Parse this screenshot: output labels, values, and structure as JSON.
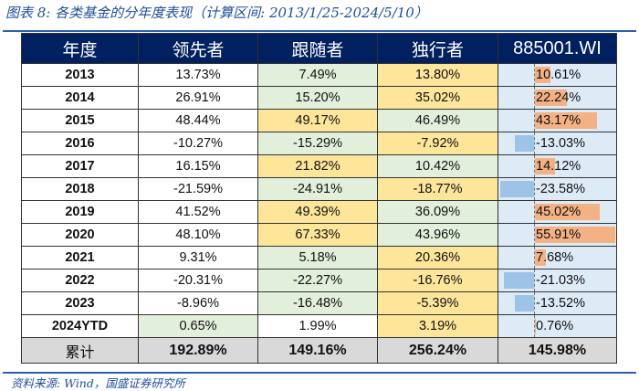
{
  "title": "图表 8:  各类基金的分年度表现（计算区间: 2013/1/25-2024/5/10）",
  "columns": [
    "年度",
    "领先者",
    "跟随者",
    "独行者",
    "885001.WI"
  ],
  "rows": [
    {
      "year": "2013",
      "leader": 13.73,
      "follower": 7.49,
      "independent": 13.8,
      "benchmark": 10.61
    },
    {
      "year": "2014",
      "leader": 26.91,
      "follower": 15.2,
      "independent": 35.02,
      "benchmark": 22.24
    },
    {
      "year": "2015",
      "leader": 48.44,
      "follower": 49.17,
      "independent": 46.49,
      "benchmark": 43.17
    },
    {
      "year": "2016",
      "leader": -10.27,
      "follower": -15.29,
      "independent": -7.92,
      "benchmark": -13.03
    },
    {
      "year": "2017",
      "leader": 16.15,
      "follower": 21.82,
      "independent": 10.42,
      "benchmark": 14.12
    },
    {
      "year": "2018",
      "leader": -21.59,
      "follower": -24.91,
      "independent": -18.77,
      "benchmark": -23.58
    },
    {
      "year": "2019",
      "leader": 41.52,
      "follower": 49.39,
      "independent": 36.09,
      "benchmark": 45.02
    },
    {
      "year": "2020",
      "leader": 48.1,
      "follower": 67.33,
      "independent": 43.96,
      "benchmark": 55.91
    },
    {
      "year": "2021",
      "leader": 9.31,
      "follower": 5.18,
      "independent": 20.36,
      "benchmark": 7.68
    },
    {
      "year": "2022",
      "leader": -20.31,
      "follower": -22.27,
      "independent": -16.76,
      "benchmark": -21.03
    },
    {
      "year": "2023",
      "leader": -8.96,
      "follower": -16.48,
      "independent": -5.39,
      "benchmark": -13.52
    },
    {
      "year": "2024YTD",
      "leader": 0.65,
      "follower": 1.99,
      "independent": 3.19,
      "benchmark": 0.76
    }
  ],
  "total": {
    "label": "累计",
    "leader": "192.89%",
    "follower": "149.16%",
    "independent": "256.24%",
    "benchmark": "145.98%"
  },
  "colors": {
    "header": "#002060",
    "max": "#fde59a",
    "min": "#e2efda",
    "bar_positive": "#f4b183",
    "bar_negative": "#9dc3e6",
    "benchmark_bg": "#ddebf7"
  },
  "source": "资料来源: Wind，国盛证券研究所"
}
